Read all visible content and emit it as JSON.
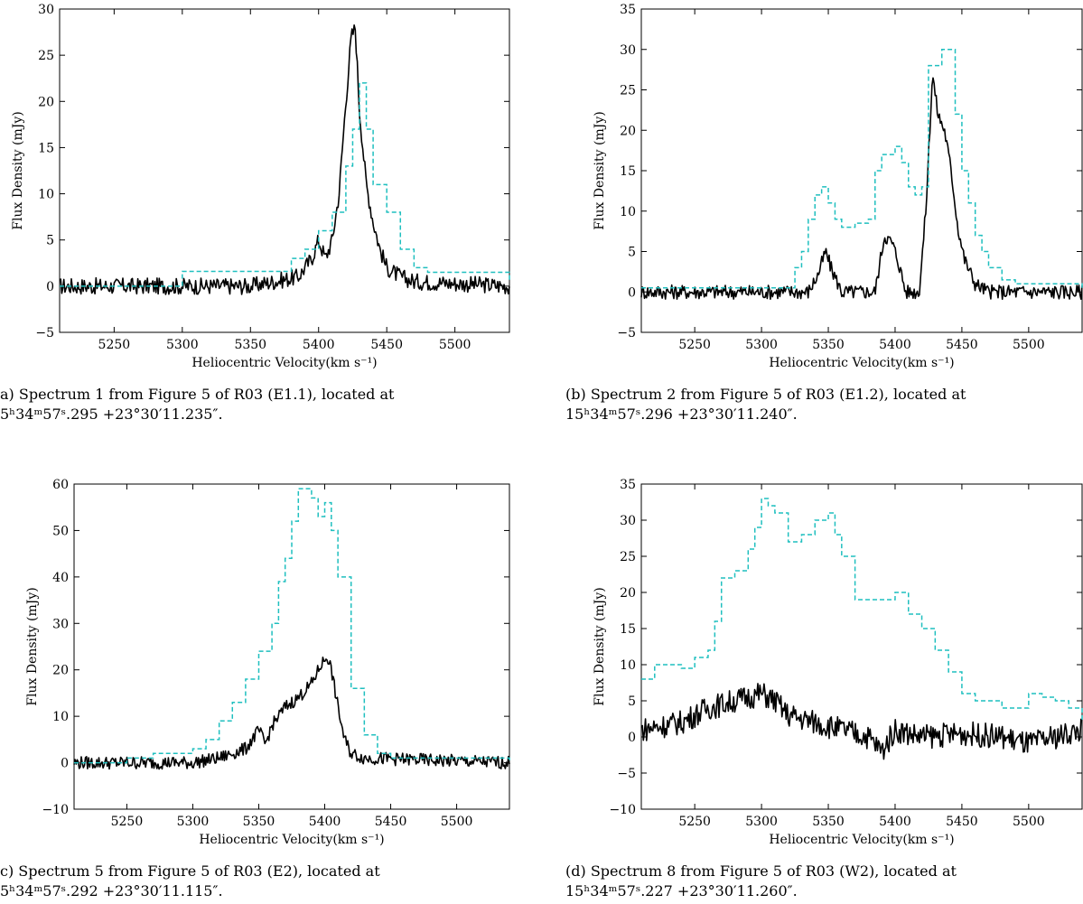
{
  "chart_data": [
    {
      "type": "line",
      "xlabel": "Heliocentric Velocity(km s⁻¹)",
      "ylabel": "Flux Density (mJy)",
      "xlim": [
        5210,
        5540
      ],
      "ylim": [
        -5,
        30
      ],
      "xticks": [
        5250,
        5300,
        5350,
        5400,
        5450,
        5500
      ],
      "yticks": [
        -5,
        0,
        5,
        10,
        15,
        20,
        25,
        30
      ],
      "series": [
        {
          "style": "solid",
          "color": "#000000",
          "x": [
            5210,
            5350,
            5385,
            5395,
            5400,
            5405,
            5410,
            5415,
            5420,
            5424,
            5427,
            5430,
            5435,
            5440,
            5445,
            5450,
            5460,
            5470,
            5540
          ],
          "y": [
            0,
            0,
            1,
            3,
            5,
            3,
            5,
            10,
            20,
            27,
            28,
            19,
            11,
            7,
            4,
            2,
            1,
            0.5,
            0
          ]
        },
        {
          "style": "dashed",
          "color": "#1fbfbf",
          "x": [
            5210,
            5300,
            5360,
            5380,
            5390,
            5400,
            5410,
            5420,
            5425,
            5430,
            5435,
            5440,
            5450,
            5460,
            5470,
            5480,
            5540
          ],
          "y": [
            0,
            1.6,
            1.6,
            3,
            4,
            6,
            8,
            13,
            17,
            22,
            17,
            11,
            8,
            4,
            2,
            1.5,
            0.5
          ]
        }
      ]
    },
    {
      "type": "line",
      "xlabel": "Heliocentric Velocity(km s⁻¹)",
      "ylabel": "Flux Density (mJy)",
      "xlim": [
        5210,
        5540
      ],
      "ylim": [
        -5,
        35
      ],
      "xticks": [
        5250,
        5300,
        5350,
        5400,
        5450,
        5500
      ],
      "yticks": [
        -5,
        0,
        5,
        10,
        15,
        20,
        25,
        30,
        35
      ],
      "series": [
        {
          "style": "solid",
          "color": "#000000",
          "x": [
            5210,
            5335,
            5342,
            5348,
            5352,
            5360,
            5370,
            5385,
            5392,
            5398,
            5402,
            5408,
            5418,
            5423,
            5428,
            5432,
            5437,
            5442,
            5447,
            5452,
            5460,
            5470,
            5540
          ],
          "y": [
            0,
            0,
            2,
            5,
            3,
            0,
            0,
            0,
            7,
            6,
            4,
            0,
            0,
            10,
            27,
            22,
            20,
            15,
            8,
            4,
            1,
            0,
            0
          ]
        },
        {
          "style": "dashed",
          "color": "#1fbfbf",
          "x": [
            5210,
            5320,
            5325,
            5330,
            5335,
            5340,
            5345,
            5350,
            5355,
            5360,
            5370,
            5380,
            5385,
            5390,
            5395,
            5400,
            5405,
            5410,
            5415,
            5420,
            5425,
            5430,
            5435,
            5440,
            5445,
            5450,
            5455,
            5460,
            5465,
            5470,
            5480,
            5490,
            5540
          ],
          "y": [
            0.5,
            0.5,
            3,
            5,
            9,
            12,
            13,
            11,
            9,
            8,
            8.5,
            9,
            15,
            17,
            17,
            18,
            16,
            13,
            12,
            13,
            28,
            28,
            30,
            30,
            22,
            15,
            11,
            7,
            5,
            3,
            1.5,
            1,
            0.5
          ]
        }
      ]
    },
    {
      "type": "line",
      "xlabel": "Heliocentric Velocity(km s⁻¹)",
      "ylabel": "Flux Density (mJy)",
      "xlim": [
        5210,
        5540
      ],
      "ylim": [
        -10,
        60
      ],
      "xticks": [
        5250,
        5300,
        5350,
        5400,
        5450,
        5500
      ],
      "yticks": [
        -10,
        0,
        10,
        20,
        30,
        40,
        50,
        60
      ],
      "series": [
        {
          "style": "solid",
          "color": "#000000",
          "x": [
            5210,
            5300,
            5320,
            5340,
            5350,
            5355,
            5360,
            5370,
            5380,
            5390,
            5397,
            5402,
            5405,
            5410,
            5415,
            5420,
            5430,
            5540
          ],
          "y": [
            0,
            0,
            1,
            3,
            7,
            4,
            8,
            12,
            14,
            17,
            21,
            23,
            20,
            12,
            5,
            2,
            1,
            0
          ]
        },
        {
          "style": "dashed",
          "color": "#1fbfbf",
          "x": [
            5210,
            5250,
            5270,
            5290,
            5300,
            5310,
            5320,
            5330,
            5340,
            5350,
            5360,
            5365,
            5370,
            5375,
            5380,
            5390,
            5395,
            5400,
            5405,
            5410,
            5420,
            5430,
            5440,
            5450,
            5540
          ],
          "y": [
            0,
            1,
            2,
            2,
            3,
            5,
            9,
            13,
            18,
            24,
            30,
            39,
            44,
            52,
            59,
            57,
            53,
            56,
            50,
            40,
            16,
            6,
            2,
            1,
            0
          ]
        }
      ]
    },
    {
      "type": "line",
      "xlabel": "Heliocentric Velocity(km s⁻¹)",
      "ylabel": "Flux Density (mJy)",
      "xlim": [
        5210,
        5540
      ],
      "ylim": [
        -10,
        35
      ],
      "xticks": [
        5250,
        5300,
        5350,
        5400,
        5450,
        5500
      ],
      "yticks": [
        -10,
        -5,
        0,
        5,
        10,
        15,
        20,
        25,
        30,
        35
      ],
      "series": [
        {
          "style": "solid",
          "color": "#000000",
          "x": [
            5210,
            5240,
            5260,
            5280,
            5300,
            5310,
            5320,
            5340,
            5360,
            5380,
            5390,
            5400,
            5420,
            5450,
            5480,
            5500,
            5520,
            5540
          ],
          "y": [
            1,
            2,
            4,
            5,
            6,
            5,
            3,
            2,
            1,
            0,
            -2,
            1,
            0,
            0.5,
            0,
            -1,
            0,
            1
          ]
        },
        {
          "style": "dashed",
          "color": "#1fbfbf",
          "x": [
            5210,
            5220,
            5240,
            5250,
            5260,
            5265,
            5270,
            5280,
            5290,
            5295,
            5300,
            5305,
            5310,
            5320,
            5330,
            5340,
            5350,
            5355,
            5360,
            5370,
            5380,
            5400,
            5410,
            5420,
            5430,
            5440,
            5450,
            5460,
            5480,
            5500,
            5510,
            5520,
            5530,
            5540
          ],
          "y": [
            8,
            10,
            9.5,
            11,
            12,
            16,
            22,
            23,
            26,
            29,
            33,
            32,
            31,
            27,
            28,
            30,
            31,
            28,
            25,
            19,
            19,
            20,
            17,
            15,
            12,
            9,
            6,
            5,
            4,
            6,
            5.5,
            5,
            4,
            2
          ]
        }
      ]
    }
  ],
  "captions": {
    "a": {
      "line1": "a) Spectrum 1 from Figure 5 of R03 (E1.1), located at",
      "line2": "5ʰ34ᵐ57ˢ.295 +23°30′11.235″."
    },
    "b": {
      "line1": "(b) Spectrum 2 from Figure 5 of R03 (E1.2), located at",
      "line2": "15ʰ34ᵐ57ˢ.296 +23°30′11.240″."
    },
    "c": {
      "line1": "c) Spectrum 5 from Figure 5 of R03 (E2), located at",
      "line2": "5ʰ34ᵐ57ˢ.292 +23°30′11.115″."
    },
    "d": {
      "line1": "(d) Spectrum 8 from Figure 5 of R03 (W2), located at",
      "line2": "15ʰ34ᵐ57ˢ.227 +23°30′11.260″."
    }
  }
}
